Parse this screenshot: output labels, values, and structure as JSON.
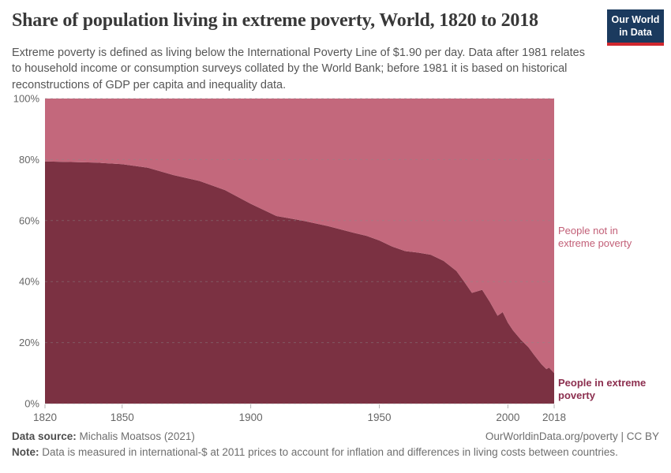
{
  "header": {
    "title": "Share of population living in extreme poverty, World, 1820 to 2018",
    "subtitle": "Extreme poverty is defined as living below the International Poverty Line of $1.90 per day. Data after 1981 relates to household income or consumption surveys collated by the World Bank; before 1981 it is based on historical reconstructions of GDP per capita and inequality data.",
    "logo": {
      "line1": "Our World",
      "line2": "in Data",
      "bg_color": "#1b3a5e",
      "bar_color": "#d0272e"
    }
  },
  "chart_data": {
    "type": "area",
    "stacked": true,
    "title": "Share of population living in extreme poverty, World, 1820 to 2018",
    "xlabel": "",
    "ylabel": "",
    "xlim": [
      1820,
      2018
    ],
    "ylim": [
      0,
      100
    ],
    "x_ticks": [
      1820,
      1850,
      1900,
      1950,
      2000,
      2018
    ],
    "y_ticks": [
      0,
      20,
      40,
      60,
      80,
      100
    ],
    "y_tick_suffix": "%",
    "grid": "dashed-horizontal",
    "legend_position": "right-inline-labels",
    "x": [
      1820,
      1830,
      1840,
      1850,
      1860,
      1870,
      1880,
      1890,
      1900,
      1910,
      1920,
      1930,
      1940,
      1945,
      1950,
      1955,
      1960,
      1965,
      1970,
      1975,
      1980,
      1983,
      1986,
      1990,
      1993,
      1996,
      1998,
      2000,
      2002,
      2005,
      2008,
      2010,
      2013,
      2015,
      2016,
      2018
    ],
    "series": [
      {
        "name": "People in extreme poverty",
        "color": "#7b3142",
        "values": [
          79.4,
          79.2,
          79.0,
          78.5,
          77.3,
          74.9,
          73.0,
          70.0,
          65.5,
          61.5,
          60.0,
          58.2,
          56.0,
          55.0,
          53.5,
          51.5,
          50.0,
          49.5,
          48.8,
          46.8,
          43.5,
          40.0,
          36.3,
          37.3,
          33.3,
          28.8,
          30.0,
          26.5,
          24.0,
          21.0,
          18.5,
          16.2,
          13.0,
          11.3,
          11.8,
          10.0
        ]
      },
      {
        "name": "People not in extreme poverty",
        "color": "#c3687c",
        "values": [
          20.6,
          20.8,
          21.0,
          21.5,
          22.7,
          25.1,
          27.0,
          30.0,
          34.5,
          38.5,
          40.0,
          41.8,
          44.0,
          45.0,
          46.5,
          48.5,
          50.0,
          50.5,
          51.2,
          53.2,
          56.5,
          60.0,
          63.7,
          62.7,
          66.7,
          71.2,
          70.0,
          73.5,
          76.0,
          79.0,
          81.5,
          83.8,
          87.0,
          88.7,
          88.2,
          90.0
        ]
      }
    ]
  },
  "annotations": {
    "not_poor": {
      "line1": "People not in",
      "line2": "extreme poverty",
      "color": "#c25f77"
    },
    "poor": {
      "line1": "People in extreme",
      "line2": "poverty",
      "color": "#8c2f4f"
    }
  },
  "footer": {
    "source_label": "Data source:",
    "source_value": " Michalis Moatsos (2021)",
    "link": "OurWorldinData.org/poverty | CC BY",
    "note_label": "Note:",
    "note_value": " Data is measured in international-$ at 2011 prices to account for inflation and differences in living costs between countries."
  }
}
